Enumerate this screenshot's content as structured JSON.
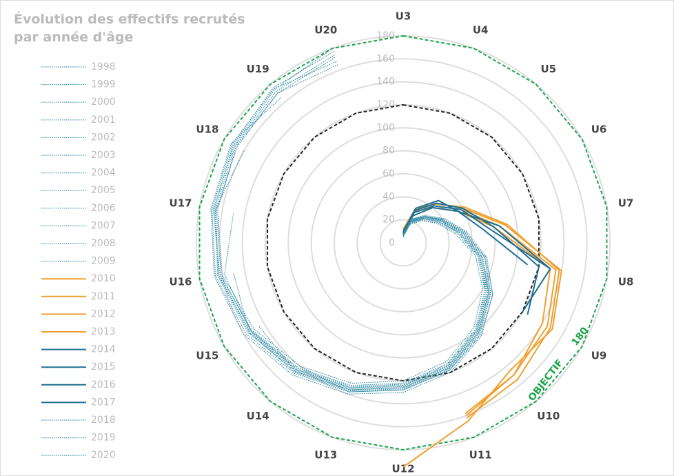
{
  "chart_data": {
    "type": "radar",
    "title": [
      "Évolution des effectifs recrutés",
      "par année d'âge"
    ],
    "categories": [
      "U3",
      "U4",
      "U5",
      "U6",
      "U7",
      "U8",
      "U9",
      "U10",
      "U11",
      "U12",
      "U13",
      "U14",
      "U15",
      "U16",
      "U17",
      "U18",
      "U19",
      "U20"
    ],
    "rlim": [
      0,
      180
    ],
    "rticks": [
      0,
      20,
      40,
      60,
      80,
      100,
      120,
      140,
      160,
      180
    ],
    "objective": 180,
    "objective_label": "OBJECTIF",
    "objective_color": "#1aa34a",
    "reference": 120,
    "reference_color": "#222",
    "grid": true,
    "series": [
      {
        "name": "1998",
        "color": "#3a8fa8",
        "style": "dotted",
        "values": [
          6,
          18,
          26,
          35,
          48,
          66,
          82,
          98,
          112,
          122,
          132,
          142,
          152,
          162,
          168,
          170,
          174,
          180
        ]
      },
      {
        "name": "1999",
        "color": "#3a8fa8",
        "style": "dotted",
        "values": [
          7,
          19,
          27,
          36,
          50,
          68,
          84,
          100,
          114,
          124,
          134,
          144,
          154,
          163,
          167,
          171,
          176,
          177
        ]
      },
      {
        "name": "2000",
        "color": "#3a8fa8",
        "style": "dotted",
        "values": [
          8,
          20,
          28,
          38,
          52,
          70,
          86,
          102,
          116,
          126,
          136,
          146,
          156,
          164,
          166,
          169,
          172,
          174
        ]
      },
      {
        "name": "2001",
        "color": "#3a8fa8",
        "style": "dotted",
        "values": [
          5,
          17,
          25,
          34,
          46,
          64,
          80,
          96,
          110,
          120,
          130,
          140,
          150,
          160,
          164,
          168,
          170,
          172
        ]
      },
      {
        "name": "2002",
        "color": "#3a8fa8",
        "style": "dotted",
        "values": [
          9,
          21,
          29,
          39,
          53,
          72,
          88,
          104,
          118,
          128,
          138,
          148,
          158,
          166,
          169,
          172,
          175,
          168
        ]
      },
      {
        "name": "2003",
        "color": "#3a8fa8",
        "style": "dotted",
        "values": [
          6,
          18,
          27,
          37,
          49,
          67,
          83,
          99,
          113,
          123,
          133,
          143,
          153,
          161,
          165,
          167,
          170,
          165
        ]
      },
      {
        "name": "2004",
        "color": "#3a8fa8",
        "style": "dotted",
        "values": [
          8,
          22,
          30,
          40,
          54,
          73,
          90,
          106,
          120,
          130,
          140,
          150,
          160,
          167,
          170,
          173,
          165,
          null
        ]
      },
      {
        "name": "2005",
        "color": "#3a8fa8",
        "style": "dotted",
        "values": [
          7,
          20,
          29,
          39,
          51,
          69,
          86,
          101,
          115,
          125,
          135,
          145,
          155,
          163,
          166,
          160,
          null,
          null
        ]
      },
      {
        "name": "2006",
        "color": "#3a8fa8",
        "style": "dotted",
        "values": [
          6,
          19,
          28,
          38,
          50,
          68,
          85,
          100,
          114,
          124,
          134,
          144,
          153,
          158,
          150,
          null,
          null,
          null
        ]
      },
      {
        "name": "2007",
        "color": "#3a8fa8",
        "style": "dotted",
        "values": [
          8,
          21,
          30,
          41,
          55,
          72,
          88,
          103,
          117,
          127,
          137,
          147,
          155,
          150,
          null,
          null,
          null,
          null
        ]
      },
      {
        "name": "2008",
        "color": "#3a8fa8",
        "style": "dotted",
        "values": [
          7,
          20,
          29,
          40,
          53,
          70,
          87,
          102,
          116,
          126,
          136,
          146,
          145,
          null,
          null,
          null,
          null,
          null
        ]
      },
      {
        "name": "2009",
        "color": "#3a8fa8",
        "style": "dotted",
        "values": [
          9,
          22,
          31,
          42,
          56,
          74,
          90,
          105,
          118,
          128,
          138,
          140,
          null,
          null,
          null,
          null,
          null,
          null
        ]
      },
      {
        "name": "2010",
        "color": "#f0a030",
        "style": "solid",
        "values": [
          10,
          30,
          45,
          60,
          90,
          140,
          150,
          145,
          165,
          195,
          null,
          null,
          null,
          null,
          null,
          null,
          null,
          null
        ]
      },
      {
        "name": "2011",
        "color": "#f0a030",
        "style": "solid",
        "values": [
          8,
          28,
          42,
          58,
          85,
          135,
          145,
          150,
          160,
          null,
          null,
          null,
          null,
          null,
          null,
          null,
          null,
          null
        ]
      },
      {
        "name": "2012",
        "color": "#f0a030",
        "style": "solid",
        "values": [
          12,
          32,
          44,
          62,
          92,
          138,
          148,
          155,
          162,
          null,
          null,
          null,
          null,
          null,
          null,
          null,
          null,
          null
        ]
      },
      {
        "name": "2013",
        "color": "#f0a030",
        "style": "solid",
        "values": [
          9,
          29,
          40,
          55,
          80,
          130,
          140,
          150,
          158,
          null,
          null,
          null,
          null,
          null,
          null,
          null,
          null,
          null
        ]
      },
      {
        "name": "2014",
        "color": "#1f6f94",
        "style": "solid",
        "values": [
          8,
          25,
          40,
          55,
          85,
          130,
          120,
          null,
          null,
          null,
          null,
          null,
          null,
          null,
          null,
          null,
          null,
          null
        ]
      },
      {
        "name": "2015",
        "color": "#1f6f94",
        "style": "solid",
        "values": [
          10,
          30,
          45,
          60,
          80,
          120,
          125,
          null,
          null,
          null,
          null,
          null,
          null,
          null,
          null,
          null,
          null,
          null
        ]
      },
      {
        "name": "2016",
        "color": "#1f6f94",
        "style": "solid",
        "values": [
          7,
          28,
          42,
          58,
          75,
          130,
          null,
          null,
          null,
          null,
          null,
          null,
          null,
          null,
          null,
          null,
          null,
          null
        ]
      },
      {
        "name": "2017",
        "color": "#1f6f94",
        "style": "solid",
        "values": [
          9,
          32,
          48,
          55,
          70,
          110,
          null,
          null,
          null,
          null,
          null,
          null,
          null,
          null,
          null,
          null,
          null,
          null
        ]
      },
      {
        "name": "2018",
        "color": "#3a8fa8",
        "style": "dotted",
        "values": [
          6,
          20,
          30,
          40,
          null,
          null,
          null,
          null,
          null,
          null,
          null,
          null,
          null,
          null,
          null,
          null,
          null,
          null
        ]
      },
      {
        "name": "2019",
        "color": "#3a8fa8",
        "style": "dotted",
        "values": [
          7,
          22,
          32,
          null,
          null,
          null,
          null,
          null,
          null,
          null,
          null,
          null,
          null,
          null,
          null,
          null,
          null,
          null
        ]
      },
      {
        "name": "2020",
        "color": "#3a8fa8",
        "style": "dotted",
        "values": [
          8,
          24,
          null,
          null,
          null,
          null,
          null,
          null,
          null,
          null,
          null,
          null,
          null,
          null,
          null,
          null,
          null,
          null
        ]
      }
    ]
  }
}
